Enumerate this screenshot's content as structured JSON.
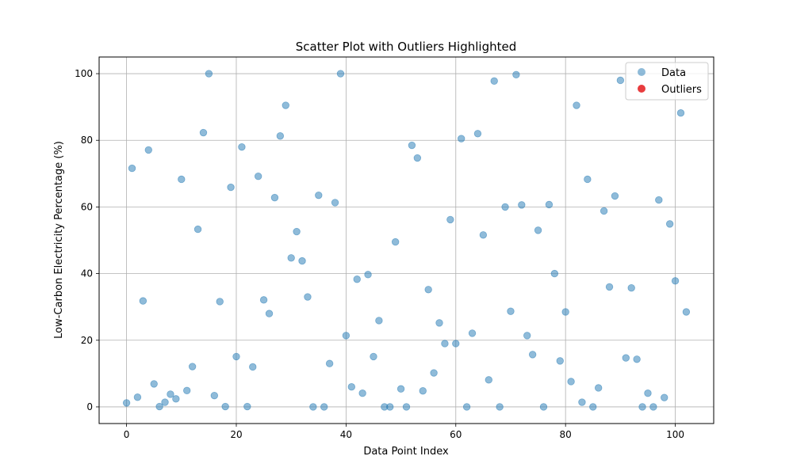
{
  "chart_data": {
    "type": "scatter",
    "title": "Scatter Plot with Outliers Highlighted",
    "xlabel": "Data Point Index",
    "ylabel": "Low-Carbon Electricity Percentage (%)",
    "xlim": [
      -5,
      107
    ],
    "ylim": [
      -5,
      105
    ],
    "xticks": [
      0,
      20,
      40,
      60,
      80,
      100
    ],
    "yticks": [
      0,
      20,
      40,
      60,
      80,
      100
    ],
    "grid": true,
    "legend_position": "top-right",
    "series": [
      {
        "name": "Data",
        "color": "#1f77b4",
        "opacity": 0.5,
        "x": [
          0,
          1,
          2,
          3,
          4,
          5,
          6,
          7,
          8,
          9,
          10,
          11,
          12,
          13,
          14,
          15,
          16,
          17,
          18,
          19,
          20,
          21,
          22,
          23,
          24,
          25,
          26,
          27,
          28,
          29,
          30,
          31,
          32,
          33,
          34,
          35,
          36,
          37,
          38,
          39,
          40,
          41,
          42,
          43,
          44,
          45,
          46,
          47,
          48,
          49,
          50,
          51,
          52,
          53,
          54,
          55,
          56,
          57,
          58,
          59,
          60,
          61,
          62,
          63,
          64,
          65,
          66,
          67,
          68,
          69,
          70,
          71,
          72,
          73,
          74,
          75,
          76,
          77,
          78,
          79,
          80,
          81,
          82,
          83,
          84,
          85,
          86,
          87,
          88,
          89,
          90,
          91,
          92,
          93,
          94,
          95,
          96,
          97,
          98,
          99,
          100,
          101,
          102
        ],
        "y": [
          1.2,
          71.6,
          2.9,
          31.8,
          77.1,
          6.9,
          0.1,
          1.4,
          3.8,
          2.4,
          68.3,
          4.9,
          12.1,
          53.3,
          82.3,
          100.0,
          3.4,
          31.6,
          0.1,
          65.9,
          15.1,
          78.0,
          0.1,
          12.0,
          69.2,
          32.1,
          28.0,
          62.8,
          81.3,
          90.5,
          44.7,
          52.6,
          43.8,
          33.0,
          0.0,
          63.5,
          0.0,
          13.0,
          61.3,
          100.0,
          21.4,
          6.0,
          38.3,
          4.1,
          39.7,
          15.1,
          25.9,
          0.0,
          0.0,
          49.5,
          5.4,
          0.0,
          78.5,
          74.7,
          4.8,
          35.2,
          10.2,
          25.2,
          19.0,
          56.2,
          19.0,
          80.5,
          0.0,
          22.1,
          82.0,
          51.6,
          8.1,
          97.8,
          0.0,
          60.0,
          28.7,
          99.7,
          60.6,
          21.4,
          15.7,
          53.0,
          0.0,
          60.7,
          40.0,
          13.8,
          28.5,
          7.6,
          90.5,
          1.4,
          68.3,
          0.0,
          5.7,
          58.8,
          36.0,
          63.3,
          98.0,
          14.7,
          35.7,
          14.3,
          0.0,
          4.1,
          0.0,
          62.1,
          2.8,
          54.9,
          37.8,
          88.2,
          28.5
        ]
      },
      {
        "name": "Outliers",
        "color": "#e41a1c",
        "opacity": 0.85,
        "x": [],
        "y": []
      }
    ]
  }
}
